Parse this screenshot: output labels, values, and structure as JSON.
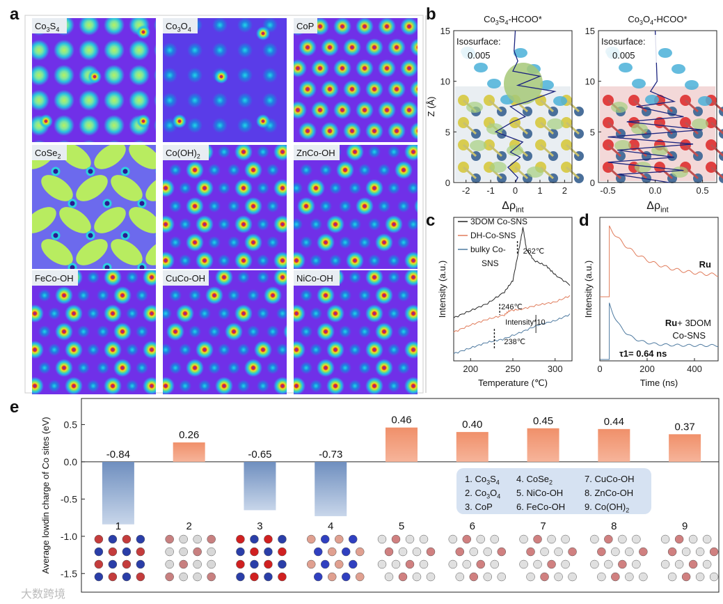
{
  "panel_letters": {
    "a": "a",
    "b": "b",
    "c": "c",
    "d": "d",
    "e": "e"
  },
  "panel_a": {
    "maps": [
      {
        "label": "Co3S4",
        "base": "Co",
        "sub1": "3",
        "mid": "S",
        "sub2": "4",
        "tail": "",
        "style": "s4"
      },
      {
        "label": "Co3O4",
        "base": "Co",
        "sub1": "3",
        "mid": "O",
        "sub2": "4",
        "tail": "",
        "style": "o4"
      },
      {
        "label": "CoP",
        "base": "CoP",
        "sub1": "",
        "mid": "",
        "sub2": "",
        "tail": "",
        "style": "cop"
      },
      {
        "label": "CoSe2",
        "base": "CoSe",
        "sub1": "2",
        "mid": "",
        "sub2": "",
        "tail": "",
        "style": "cose"
      },
      {
        "label": "Co(OH)2",
        "base": "Co(OH)",
        "sub1": "2",
        "mid": "",
        "sub2": "",
        "tail": "",
        "style": "hex"
      },
      {
        "label": "ZnCo-OH",
        "base": "ZnCo-OH",
        "sub1": "",
        "mid": "",
        "sub2": "",
        "tail": "",
        "style": "hexsparse"
      },
      {
        "label": "FeCo-OH",
        "base": "FeCo-OH",
        "sub1": "",
        "mid": "",
        "sub2": "",
        "tail": "",
        "style": "hex"
      },
      {
        "label": "CuCo-OH",
        "base": "CuCo-OH",
        "sub1": "",
        "mid": "",
        "sub2": "",
        "tail": "",
        "style": "hexsparse"
      },
      {
        "label": "NiCo-OH",
        "base": "NiCo-OH",
        "sub1": "",
        "mid": "",
        "sub2": "",
        "tail": "",
        "style": "hex"
      }
    ]
  },
  "panel_b": {
    "plots": [
      {
        "title_base": "Co",
        "title_sub": "3",
        "title_mid": "S",
        "title_sub2": "4",
        "title_tail": "-HCOO*",
        "iso_label": "Isosurface:",
        "iso_value": "0.005",
        "xticks": [
          "-2",
          "-1",
          "0",
          "1",
          "2"
        ],
        "xlim": [
          -2.5,
          2.3
        ],
        "yticks": [
          "0",
          "5",
          "10",
          "15"
        ],
        "ylim": [
          0,
          15
        ],
        "ylabel": "Z (Å)",
        "xlabel_base": "Δρ",
        "xlabel_sub": "int",
        "profile": [
          [
            0,
            0
          ],
          [
            0.1,
            0.5
          ],
          [
            -0.3,
            1.5
          ],
          [
            0.2,
            2.5
          ],
          [
            -0.2,
            3
          ],
          [
            0.3,
            4
          ],
          [
            -0.8,
            5
          ],
          [
            -0.1,
            6
          ],
          [
            0.4,
            6.5
          ],
          [
            -0.2,
            7.5
          ],
          [
            0.5,
            8
          ],
          [
            1.6,
            9
          ],
          [
            0.1,
            9.6
          ],
          [
            1.0,
            10.5
          ],
          [
            -0.1,
            11
          ],
          [
            0.1,
            12
          ],
          [
            -0.05,
            13
          ],
          [
            0,
            15
          ]
        ]
      },
      {
        "title_base": "Co",
        "title_sub": "3",
        "title_mid": "O",
        "title_sub2": "4",
        "title_tail": "-HCOO*",
        "iso_label": "Isosurface:",
        "iso_value": "0.005",
        "xticks": [
          "-0.5",
          "0.0",
          "0.5"
        ],
        "xlim": [
          -0.6,
          0.65
        ],
        "yticks": [
          "0",
          "5",
          "10",
          "15"
        ],
        "ylim": [
          0,
          15
        ],
        "ylabel": "",
        "xlabel_base": "Δρ",
        "xlabel_sub": "int",
        "profile": [
          [
            0.15,
            0
          ],
          [
            -0.4,
            0.8
          ],
          [
            0.3,
            1.2
          ],
          [
            -0.5,
            2
          ],
          [
            0.2,
            2.5
          ],
          [
            -0.4,
            3.2
          ],
          [
            0.4,
            3.8
          ],
          [
            -0.5,
            4.5
          ],
          [
            0.5,
            5.2
          ],
          [
            -0.3,
            6
          ],
          [
            0.3,
            6.5
          ],
          [
            -0.2,
            7.5
          ],
          [
            0.2,
            8
          ],
          [
            -0.05,
            9
          ],
          [
            0.02,
            10
          ],
          [
            0,
            15
          ]
        ]
      }
    ]
  },
  "panel_c": {
    "xlabel": "Temperature (℃)",
    "ylabel": "Intensity (a.u.)",
    "xticks": [
      "200",
      "250",
      "300"
    ],
    "xlim": [
      180,
      320
    ],
    "legend": [
      "3DOM Co-SNS",
      "DH-Co-SNS",
      "bulky Co-SNS"
    ],
    "legend_line3": "SNS",
    "legend_3a": "bulky Co-",
    "annotations": {
      "peak1": "262℃",
      "peak2": "246℃",
      "peak3": "238℃",
      "scale": "Intensity*10"
    },
    "colors": {
      "s1": "#222222",
      "s2": "#e07b5a",
      "s3": "#4e7aa0"
    },
    "series": [
      {
        "name": "3DOM Co-SNS",
        "x": [
          180,
          200,
          220,
          240,
          250,
          258,
          262,
          266,
          275,
          290,
          300,
          320
        ],
        "y": [
          0.3,
          0.35,
          0.4,
          0.48,
          0.56,
          0.8,
          0.93,
          0.78,
          0.7,
          0.66,
          0.6,
          0.52
        ]
      },
      {
        "name": "DH-Co-SNS",
        "x": [
          180,
          200,
          220,
          240,
          246,
          260,
          280,
          300,
          320
        ],
        "y": [
          0.2,
          0.25,
          0.29,
          0.32,
          0.35,
          0.36,
          0.39,
          0.41,
          0.46
        ]
      },
      {
        "name": "bulky Co-SNS",
        "x": [
          180,
          200,
          220,
          238,
          260,
          280,
          300,
          320
        ],
        "y": [
          0.05,
          0.09,
          0.13,
          0.15,
          0.2,
          0.25,
          0.28,
          0.33
        ]
      }
    ]
  },
  "panel_d": {
    "xlabel": "Time (ns)",
    "ylabel": "Intensity (a.u.)",
    "xticks": [
      "0",
      "200",
      "400"
    ],
    "xlim": [
      0,
      500
    ],
    "label_ru": "Ru",
    "label_ru2_bold": "Ru",
    "label_ru2_rest": "+ 3DOM",
    "label_ru2_line2": "Co-SNS",
    "tau_text": "τ1= 0.64 ns",
    "colors": {
      "ru": "#e07b5a",
      "ru2": "#4e7aa0"
    }
  },
  "panel_e": {
    "ylabel": "Average lowdin charge of Co sites  (eV)",
    "yticks": [
      "0.5",
      "0.0",
      "-0.5",
      "-1.0",
      "-1.5"
    ],
    "ylim": [
      -1.75,
      0.85
    ],
    "bar_pos_color": "#f0a080",
    "bar_neg_color": "#8fa9cc",
    "chart_data": {
      "type": "bar",
      "categories": [
        "1",
        "2",
        "3",
        "4",
        "5",
        "6",
        "7",
        "8",
        "9"
      ],
      "values": [
        -0.84,
        0.26,
        -0.65,
        -0.73,
        0.46,
        0.4,
        0.45,
        0.44,
        0.37
      ],
      "value_labels": [
        "-0.84",
        "0.26",
        "-0.65",
        "-0.73",
        "0.46",
        "0.40",
        "0.45",
        "0.44",
        "0.37"
      ]
    },
    "legend_items": [
      {
        "num": "1.",
        "base": "Co",
        "sub1": "3",
        "mid": "S",
        "sub2": "4",
        "tail": ""
      },
      {
        "num": "2.",
        "base": "Co",
        "sub1": "3",
        "mid": "O",
        "sub2": "4",
        "tail": ""
      },
      {
        "num": "3.",
        "base": "CoP",
        "sub1": "",
        "mid": "",
        "sub2": "",
        "tail": ""
      },
      {
        "num": "4.",
        "base": "CoSe",
        "sub1": "2",
        "mid": "",
        "sub2": "",
        "tail": ""
      },
      {
        "num": "5.",
        "base": "NiCo-OH",
        "sub1": "",
        "mid": "",
        "sub2": "",
        "tail": ""
      },
      {
        "num": "6.",
        "base": "FeCo-OH",
        "sub1": "",
        "mid": "",
        "sub2": "",
        "tail": ""
      },
      {
        "num": "7.",
        "base": "CuCo-OH",
        "sub1": "",
        "mid": "",
        "sub2": "",
        "tail": ""
      },
      {
        "num": "8.",
        "base": "ZnCo-OH",
        "sub1": "",
        "mid": "",
        "sub2": "",
        "tail": ""
      },
      {
        "num": "9.",
        "base": "Co(OH)",
        "sub1": "2",
        "mid": "",
        "sub2": "",
        "tail": ""
      }
    ],
    "struct_labels": [
      "1",
      "2",
      "3",
      "4",
      "5",
      "6",
      "7",
      "8",
      "9"
    ]
  },
  "watermark": "大数跨境"
}
